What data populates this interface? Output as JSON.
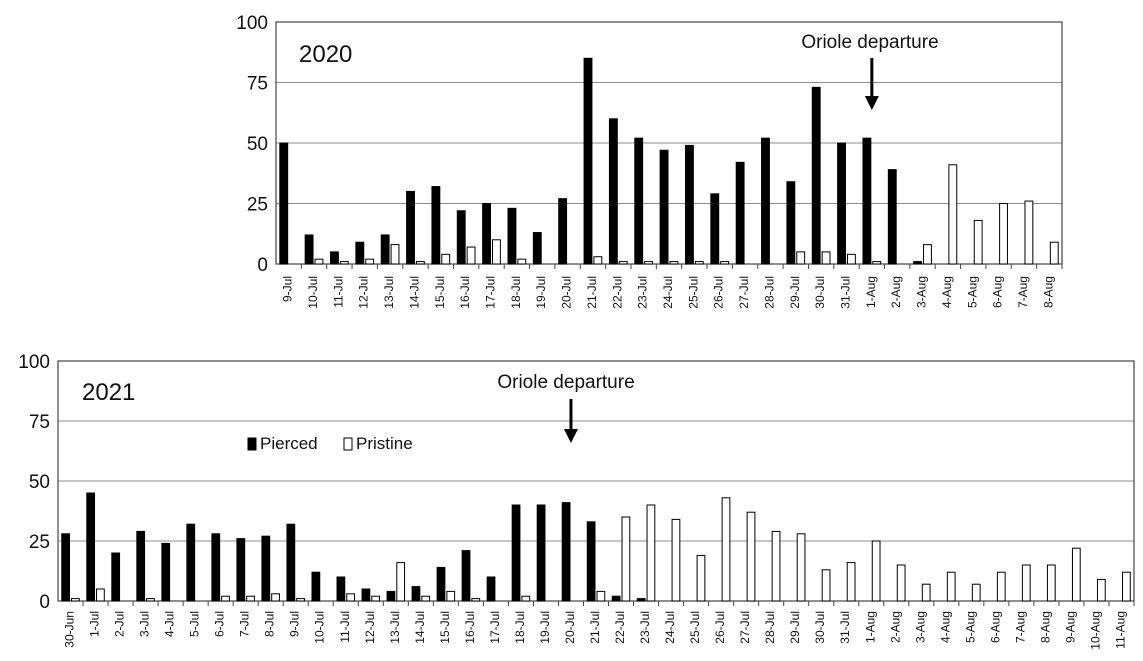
{
  "chart_data": [
    {
      "type": "bar",
      "title": "2020",
      "annotation": "Oriole departure",
      "annotation_at": "1-Aug",
      "ylim": [
        0,
        100
      ],
      "yticks": [
        0,
        25,
        50,
        75,
        100
      ],
      "grid": true,
      "categories": [
        "9-Jul",
        "10-Jul",
        "11-Jul",
        "12-Jul",
        "13-Jul",
        "14-Jul",
        "15-Jul",
        "16-Jul",
        "17-Jul",
        "18-Jul",
        "19-Jul",
        "20-Jul",
        "21-Jul",
        "22-Jul",
        "23-Jul",
        "24-Jul",
        "25-Jul",
        "26-Jul",
        "27-Jul",
        "28-Jul",
        "29-Jul",
        "30-Jul",
        "31-Jul",
        "1-Aug",
        "2-Aug",
        "3-Aug",
        "4-Aug",
        "5-Aug",
        "6-Aug",
        "7-Aug",
        "8-Aug"
      ],
      "series": [
        {
          "name": "Pierced",
          "color": "#000000",
          "values": [
            50,
            12,
            5,
            9,
            12,
            30,
            32,
            22,
            25,
            23,
            13,
            27,
            85,
            60,
            52,
            47,
            49,
            29,
            42,
            52,
            34,
            73,
            50,
            52,
            39,
            1,
            0,
            0,
            0,
            0,
            0
          ]
        },
        {
          "name": "Pristine",
          "color": "#ffffff",
          "values": [
            0,
            2,
            1,
            2,
            8,
            1,
            4,
            7,
            10,
            2,
            0,
            0,
            3,
            1,
            1,
            1,
            1,
            1,
            0,
            0,
            5,
            5,
            4,
            1,
            0,
            8,
            41,
            18,
            25,
            26,
            9
          ]
        }
      ]
    },
    {
      "type": "bar",
      "title": "2021",
      "annotation": "Oriole departure",
      "annotation_at": "20-Jul",
      "ylim": [
        0,
        100
      ],
      "yticks": [
        0,
        25,
        50,
        75,
        100
      ],
      "grid": true,
      "legend_position": "top-left",
      "categories": [
        "30-Jun",
        "1-Jul",
        "2-Jul",
        "3-Jul",
        "4-Jul",
        "5-Jul",
        "6-Jul",
        "7-Jul",
        "8-Jul",
        "9-Jul",
        "10-Jul",
        "11-Jul",
        "12-Jul",
        "13-Jul",
        "14-Jul",
        "15-Jul",
        "16-Jul",
        "17-Jul",
        "18-Jul",
        "19-Jul",
        "20-Jul",
        "21-Jul",
        "22-Jul",
        "23-Jul",
        "24-Jul",
        "25-Jul",
        "26-Jul",
        "27-Jul",
        "28-Jul",
        "29-Jul",
        "30-Jul",
        "31-Jul",
        "1-Aug",
        "2-Aug",
        "3-Aug",
        "4-Aug",
        "5-Aug",
        "6-Aug",
        "7-Aug",
        "8-Aug",
        "9-Aug",
        "10-Aug",
        "11-Aug"
      ],
      "series": [
        {
          "name": "Pierced",
          "color": "#000000",
          "values": [
            28,
            45,
            20,
            29,
            24,
            32,
            28,
            26,
            27,
            32,
            12,
            10,
            5,
            4,
            6,
            14,
            21,
            10,
            40,
            40,
            41,
            33,
            2,
            1,
            0,
            0,
            0,
            0,
            0,
            0,
            0,
            0,
            0,
            0,
            0,
            0,
            0,
            0,
            0,
            0,
            0,
            0,
            0
          ]
        },
        {
          "name": "Pristine",
          "color": "#ffffff",
          "values": [
            1,
            5,
            0,
            1,
            0,
            0,
            2,
            2,
            3,
            1,
            0,
            3,
            2,
            16,
            2,
            4,
            1,
            0,
            2,
            0,
            0,
            4,
            35,
            40,
            34,
            19,
            43,
            37,
            29,
            28,
            13,
            16,
            25,
            15,
            7,
            12,
            7,
            12,
            15,
            15,
            22,
            9,
            12
          ]
        }
      ]
    }
  ]
}
